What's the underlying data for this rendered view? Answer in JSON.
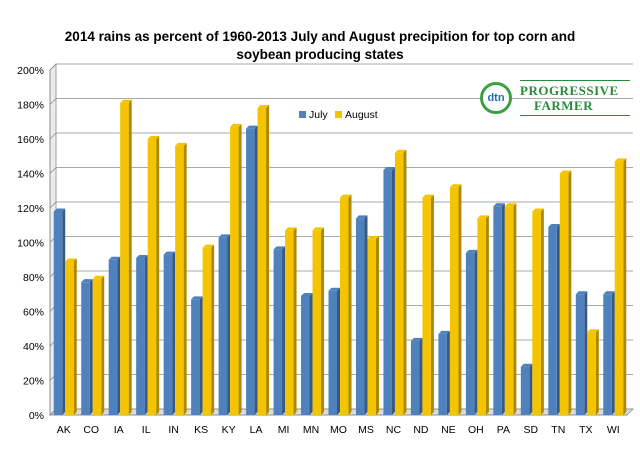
{
  "chart_data": {
    "type": "bar",
    "title": "2014 rains as percent of 1960-2013 July and August precipition for top corn and soybean producing states",
    "categories": [
      "AK",
      "CO",
      "IA",
      "IL",
      "IN",
      "KS",
      "KY",
      "LA",
      "MI",
      "MN",
      "MO",
      "MS",
      "NC",
      "ND",
      "NE",
      "OH",
      "PA",
      "SD",
      "TN",
      "TX",
      "WI"
    ],
    "series": [
      {
        "name": "July",
        "color": "#4f81bd",
        "values": [
          118,
          77,
          90,
          91,
          93,
          67,
          103,
          166,
          96,
          69,
          72,
          114,
          142,
          43,
          47,
          94,
          121,
          28,
          109,
          70,
          70
        ]
      },
      {
        "name": "August",
        "color": "#f5c400",
        "values": [
          89,
          79,
          181,
          160,
          156,
          97,
          167,
          178,
          107,
          107,
          126,
          102,
          152,
          126,
          132,
          114,
          121,
          118,
          140,
          48,
          147
        ]
      }
    ],
    "y_ticks": [
      "0%",
      "20%",
      "40%",
      "60%",
      "80%",
      "100%",
      "120%",
      "140%",
      "160%",
      "180%",
      "200%"
    ],
    "ylim": [
      0,
      200
    ],
    "grid": true,
    "legend_position": "top-center",
    "xlabel": "",
    "ylabel": ""
  },
  "logo": {
    "icon_text": "dtn",
    "line1": "PROGRESSIVE",
    "line2": "FARMER"
  }
}
